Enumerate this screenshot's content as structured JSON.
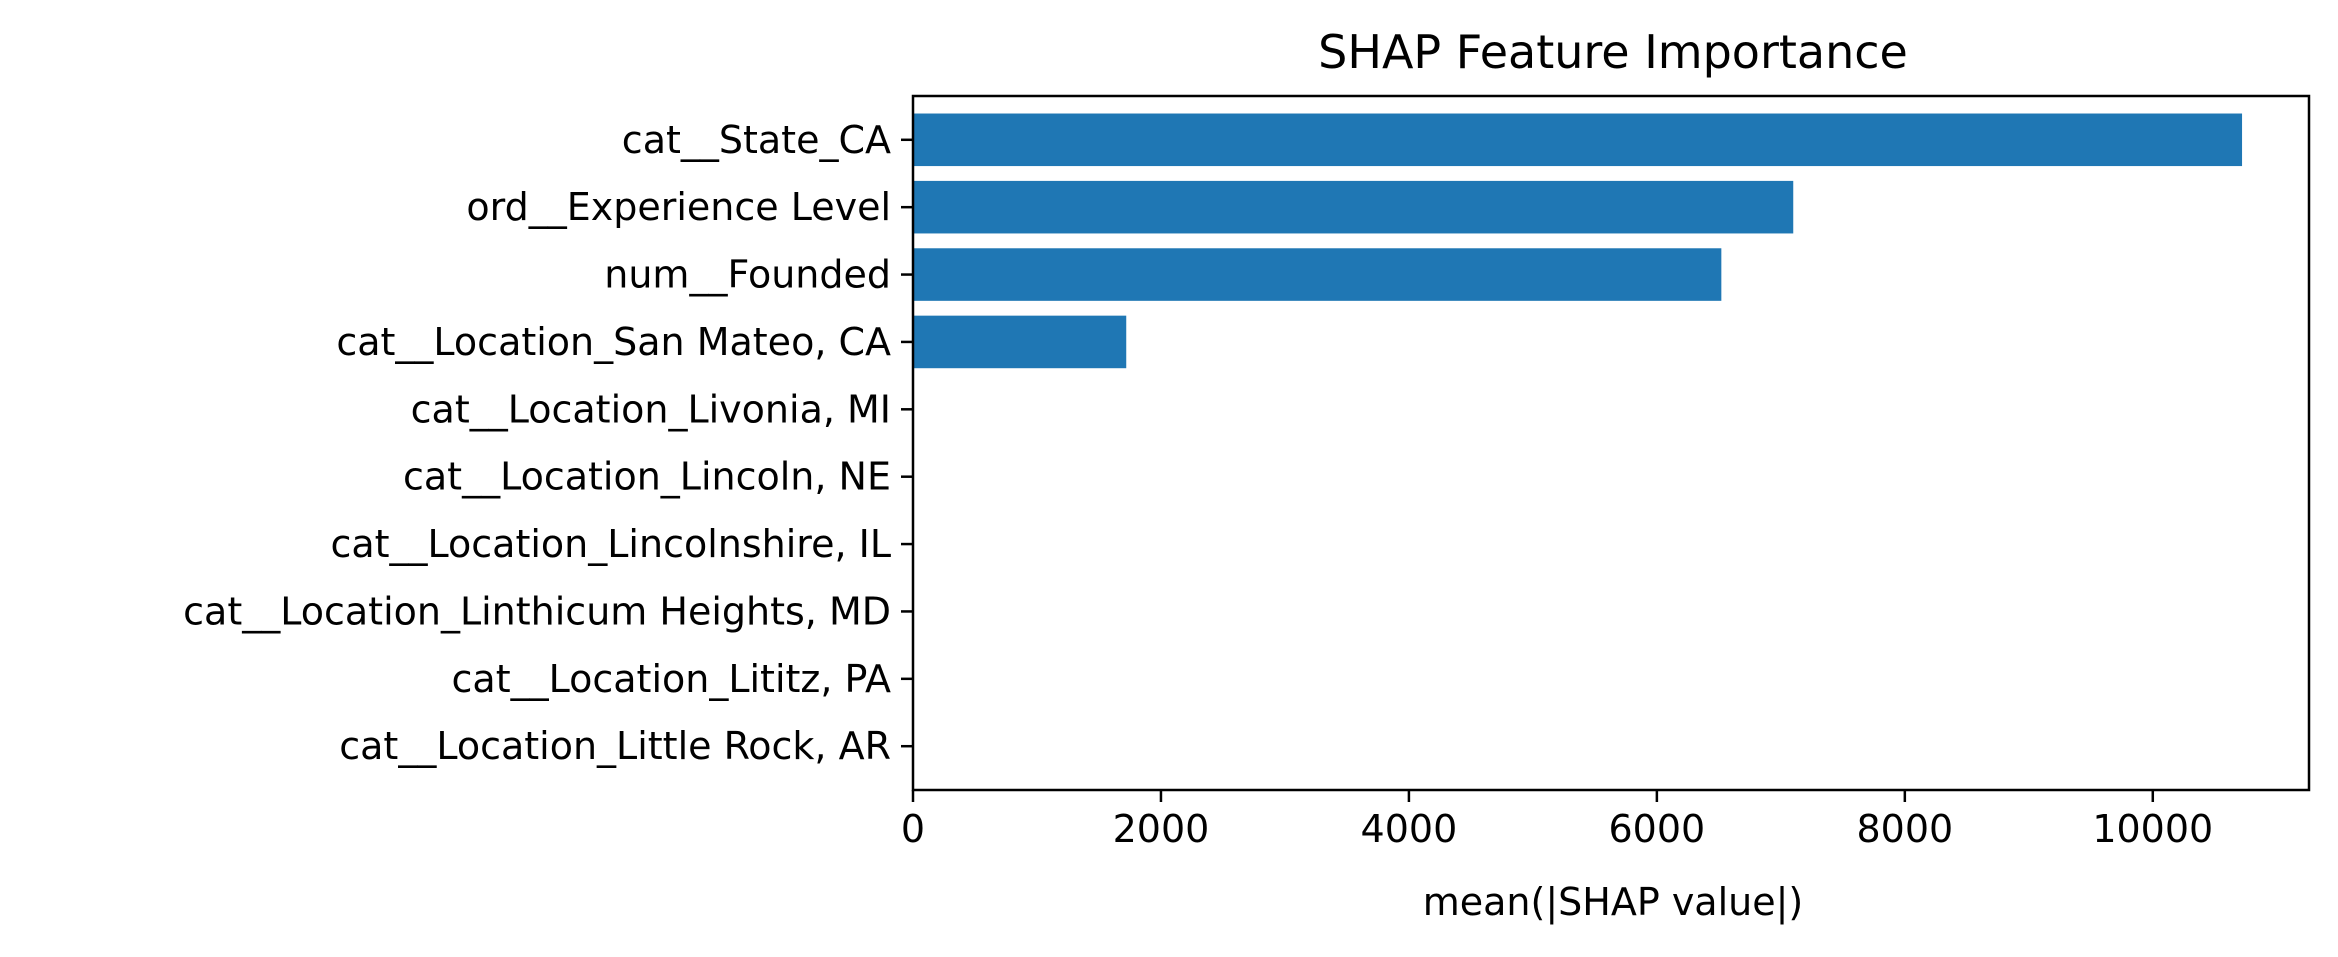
{
  "chart_data": {
    "type": "bar",
    "orientation": "horizontal",
    "title": "SHAP Feature Importance",
    "xlabel": "mean(|SHAP value|)",
    "ylabel": "",
    "categories": [
      "cat__State_CA",
      "ord__Experience Level",
      "num__Founded",
      "cat__Location_San Mateo, CA",
      "cat__Location_Livonia, MI",
      "cat__Location_Lincoln, NE",
      "cat__Location_Lincolnshire, IL",
      "cat__Location_Linthicum Heights, MD",
      "cat__Location_Lititz, PA",
      "cat__Location_Little Rock, AR"
    ],
    "values": [
      10720,
      7100,
      6520,
      1720,
      0,
      0,
      0,
      0,
      0,
      0
    ],
    "xlim": [
      0,
      11260
    ],
    "xticks": [
      0,
      2000,
      4000,
      6000,
      8000,
      10000
    ],
    "xtick_labels": [
      "0",
      "2000",
      "4000",
      "6000",
      "8000",
      "10000"
    ],
    "grid": false,
    "bar_color": "#1f77b4"
  }
}
